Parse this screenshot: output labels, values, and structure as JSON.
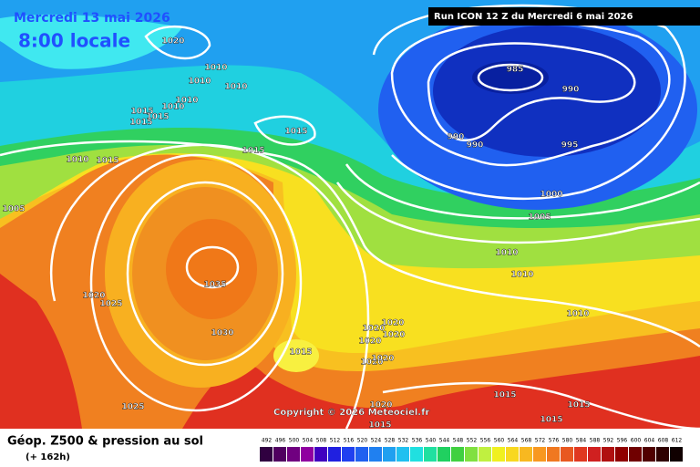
{
  "header": {
    "date": "Mercredi 13 mai 2026",
    "time": "8:00 locale",
    "run": "Run ICON 12 Z du Mercredi 6 mai 2026"
  },
  "copyright": "Copyright © 2026 Meteociel.fr",
  "isobar_labels": [
    "1020",
    "1010",
    "1010",
    "1010",
    "1010",
    "1015",
    "1015",
    "1015",
    "1010",
    "1015",
    "1015",
    "1010",
    "1015",
    "1005",
    "985",
    "990",
    "990",
    "990",
    "995",
    "1000",
    "1005",
    "1010",
    "1010",
    "1010",
    "1035",
    "1020",
    "1025",
    "1030",
    "1015",
    "1020",
    "1020",
    "1020",
    "1020",
    "1020",
    "1020",
    "1025",
    "1020",
    "1015",
    "1015",
    "1015",
    "1015"
  ],
  "legend": {
    "title": "Géop. Z500 & pression au sol",
    "lead": "(+ 162h)",
    "scale": [
      492,
      496,
      500,
      504,
      508,
      512,
      516,
      520,
      524,
      528,
      532,
      536,
      540,
      544,
      548,
      552,
      556,
      560,
      564,
      568,
      572,
      576,
      580,
      584,
      588,
      592,
      596,
      600,
      604,
      608,
      612
    ],
    "colors": [
      "#300040",
      "#500060",
      "#700080",
      "#9000a0",
      "#4000c0",
      "#2020e0",
      "#2040f0",
      "#2060f0",
      "#2080f0",
      "#20a0f0",
      "#20c0f0",
      "#20e0e0",
      "#20e0a0",
      "#20d060",
      "#40d040",
      "#80e040",
      "#c0f040",
      "#f0f020",
      "#f8d820",
      "#f8b820",
      "#f89820",
      "#f07820",
      "#e85820",
      "#e03820",
      "#d02020",
      "#b01010",
      "#900000",
      "#700000",
      "#500000",
      "#300000",
      "#100000"
    ]
  }
}
